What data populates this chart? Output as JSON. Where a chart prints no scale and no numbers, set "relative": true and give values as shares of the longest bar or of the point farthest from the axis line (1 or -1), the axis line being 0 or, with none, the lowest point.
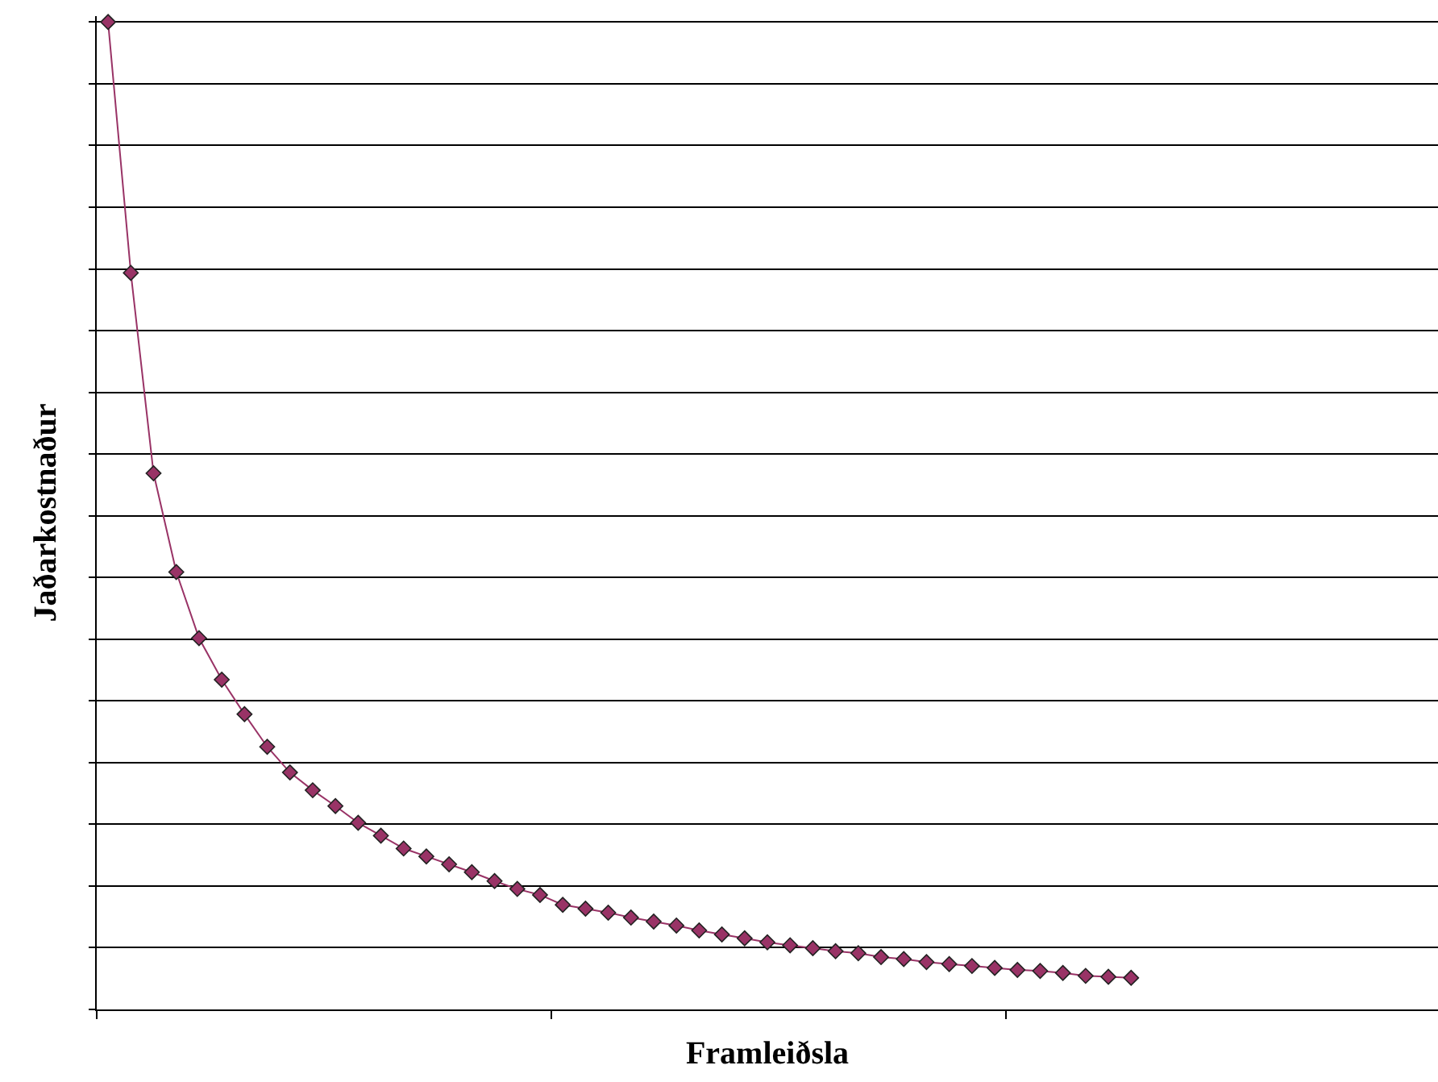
{
  "chart_data": {
    "type": "line",
    "relative": true,
    "xlabel": "Framleiðsla",
    "ylabel": "Jaðarkostnaður",
    "grid": "y",
    "marker": "diamond",
    "line_style": "solid",
    "tick_labels": false,
    "categories": [
      null,
      null,
      null,
      null,
      null,
      null,
      null,
      null,
      null,
      null,
      null,
      null,
      null,
      null,
      null,
      null,
      null,
      null,
      null,
      null,
      null,
      null,
      null,
      null,
      null,
      null,
      null,
      null,
      null,
      null,
      null,
      null,
      null,
      null,
      null,
      null,
      null,
      null,
      null,
      null,
      null,
      null,
      null,
      null,
      null,
      null,
      null,
      null,
      null,
      null,
      null,
      null,
      null,
      null,
      null,
      null,
      null,
      null,
      null
    ],
    "series": [
      {
        "color": "#993366",
        "values": [
          1,
          0.746,
          0.543,
          0.443,
          0.376,
          0.334,
          0.299,
          0.266,
          0.24,
          0.222,
          0.206,
          0.189,
          0.176,
          0.163,
          0.155,
          0.147,
          0.139,
          0.13,
          0.122,
          0.116,
          0.106,
          0.102,
          0.098,
          0.093,
          0.089,
          0.085,
          0.08,
          0.076,
          0.072,
          0.068,
          0.065,
          0.062,
          0.059,
          0.057,
          0.053,
          0.051,
          0.048,
          0.046,
          0.044,
          0.042,
          0.04,
          0.039,
          0.037,
          0.034,
          0.033,
          0.032,
          null,
          null,
          null,
          null,
          null,
          null,
          null,
          null,
          null,
          null,
          null,
          null,
          null
        ]
      }
    ]
  }
}
